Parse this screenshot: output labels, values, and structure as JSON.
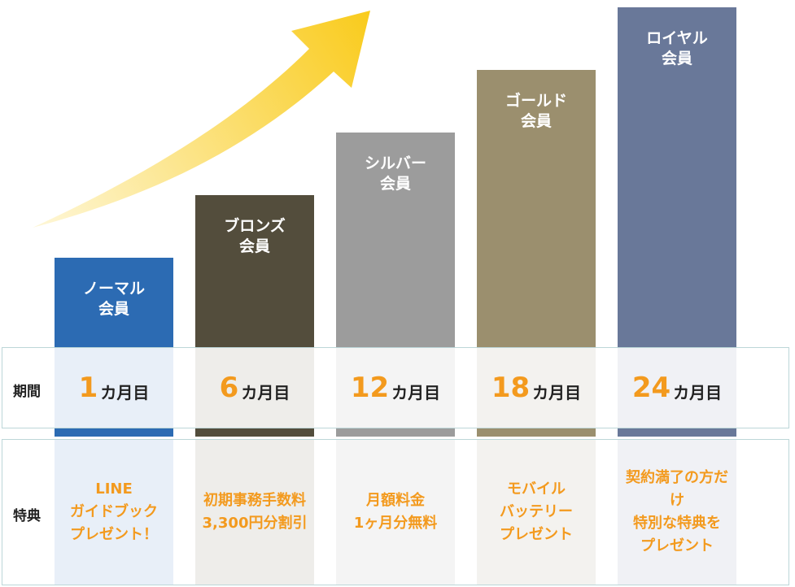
{
  "chart_data": {
    "type": "bar",
    "trend_arrow": true,
    "categories": [
      "ノーマル\n会員",
      "ブロンズ\n会員",
      "シルバー\n会員",
      "ゴールド\n会員",
      "ロイヤル\n会員"
    ],
    "values": [
      1,
      2,
      3,
      4,
      5
    ],
    "colors": [
      "#2c6bb3",
      "#534d3c",
      "#9c9c9c",
      "#9b8f6e",
      "#697899"
    ],
    "cell_tints": [
      "#e8eff8",
      "#eeedea",
      "#f4f4f4",
      "#f3f2ef",
      "#f0f1f5"
    ],
    "arrow_colors": [
      "#fef7d8",
      "#f9cb1c"
    ]
  },
  "rows": {
    "period_label": "期間",
    "perk_label": "特典"
  },
  "periods": [
    {
      "num": "1",
      "unit": "カ月目"
    },
    {
      "num": "6",
      "unit": "カ月目"
    },
    {
      "num": "12",
      "unit": "カ月目"
    },
    {
      "num": "18",
      "unit": "カ月目"
    },
    {
      "num": "24",
      "unit": "カ月目"
    }
  ],
  "perks": [
    "LINE\nガイドブック\nプレゼント！",
    "初期事務手数料\n3,300円分割引",
    "月額料金\n1ヶ月分無料",
    "モバイル\nバッテリー\nプレゼント",
    "契約満了の方だけ\n特別な特典を\nプレゼント"
  ]
}
